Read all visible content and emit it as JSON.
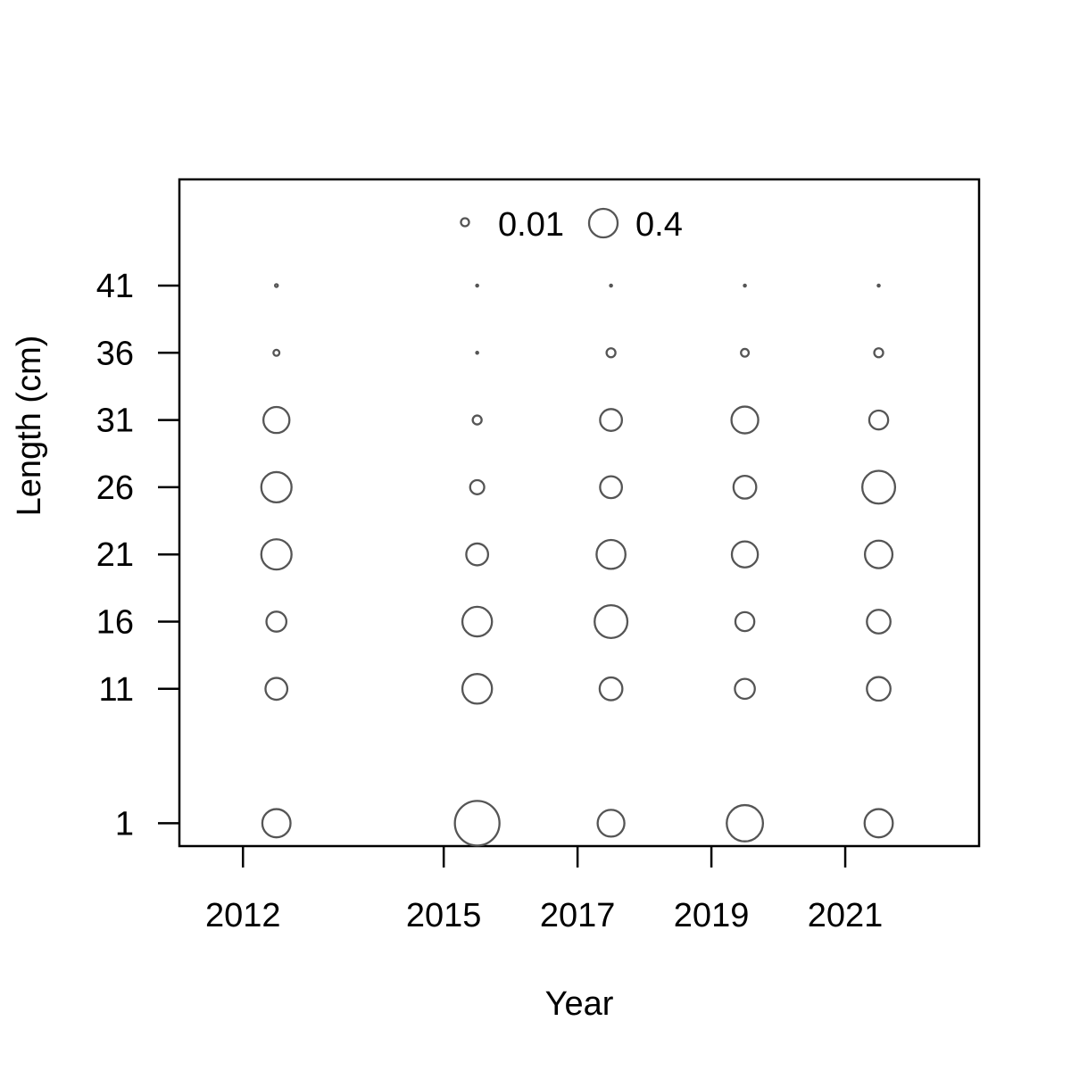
{
  "chart_data": {
    "type": "scatter",
    "variant": "bubble",
    "xlabel": "Year",
    "ylabel": "Length (cm)",
    "x_ticks": [
      2012,
      2015,
      2017,
      2019,
      2021
    ],
    "y_ticks": [
      1,
      11,
      16,
      21,
      26,
      31,
      36,
      41
    ],
    "xlim": [
      2011.05,
      2023.0
    ],
    "ylim": [
      -0.7,
      48.9
    ],
    "legend": {
      "placement": "top-center",
      "entries": [
        {
          "value": 0.01,
          "label": "0.01"
        },
        {
          "value": 0.4,
          "label": "0.4"
        }
      ]
    },
    "points": [
      {
        "year": 2012.5,
        "length": 1,
        "value": 0.2
      },
      {
        "year": 2012.5,
        "length": 11,
        "value": 0.12
      },
      {
        "year": 2012.5,
        "length": 16,
        "value": 0.1
      },
      {
        "year": 2012.5,
        "length": 21,
        "value": 0.23
      },
      {
        "year": 2012.5,
        "length": 26,
        "value": 0.23
      },
      {
        "year": 2012.5,
        "length": 31,
        "value": 0.17
      },
      {
        "year": 2012.5,
        "length": 36,
        "value": 0.009
      },
      {
        "year": 2012.5,
        "length": 41,
        "value": 0.002
      },
      {
        "year": 2015.5,
        "length": 1,
        "value": 0.5
      },
      {
        "year": 2015.5,
        "length": 11,
        "value": 0.22
      },
      {
        "year": 2015.5,
        "length": 16,
        "value": 0.22
      },
      {
        "year": 2015.5,
        "length": 21,
        "value": 0.12
      },
      {
        "year": 2015.5,
        "length": 26,
        "value": 0.05
      },
      {
        "year": 2015.5,
        "length": 31,
        "value": 0.02
      },
      {
        "year": 2015.5,
        "length": 36,
        "value": 0.001
      },
      {
        "year": 2015.5,
        "length": 41,
        "value": 0.001
      },
      {
        "year": 2017.5,
        "length": 1,
        "value": 0.18
      },
      {
        "year": 2017.5,
        "length": 11,
        "value": 0.13
      },
      {
        "year": 2017.5,
        "length": 16,
        "value": 0.27
      },
      {
        "year": 2017.5,
        "length": 21,
        "value": 0.21
      },
      {
        "year": 2017.5,
        "length": 26,
        "value": 0.12
      },
      {
        "year": 2017.5,
        "length": 31,
        "value": 0.12
      },
      {
        "year": 2017.5,
        "length": 36,
        "value": 0.02
      },
      {
        "year": 2017.5,
        "length": 41,
        "value": 0.001
      },
      {
        "year": 2019.5,
        "length": 1,
        "value": 0.33
      },
      {
        "year": 2019.5,
        "length": 11,
        "value": 0.1
      },
      {
        "year": 2019.5,
        "length": 16,
        "value": 0.09
      },
      {
        "year": 2019.5,
        "length": 21,
        "value": 0.17
      },
      {
        "year": 2019.5,
        "length": 26,
        "value": 0.13
      },
      {
        "year": 2019.5,
        "length": 31,
        "value": 0.18
      },
      {
        "year": 2019.5,
        "length": 36,
        "value": 0.015
      },
      {
        "year": 2019.5,
        "length": 41,
        "value": 0.001
      },
      {
        "year": 2021.5,
        "length": 1,
        "value": 0.2
      },
      {
        "year": 2021.5,
        "length": 11,
        "value": 0.14
      },
      {
        "year": 2021.5,
        "length": 16,
        "value": 0.14
      },
      {
        "year": 2021.5,
        "length": 21,
        "value": 0.19
      },
      {
        "year": 2021.5,
        "length": 26,
        "value": 0.27
      },
      {
        "year": 2021.5,
        "length": 31,
        "value": 0.09
      },
      {
        "year": 2021.5,
        "length": 36,
        "value": 0.02
      },
      {
        "year": 2021.5,
        "length": 41,
        "value": 0.001
      }
    ],
    "grid": false,
    "colors": {
      "bubble_stroke": "#555555",
      "axis": "#000000"
    }
  }
}
